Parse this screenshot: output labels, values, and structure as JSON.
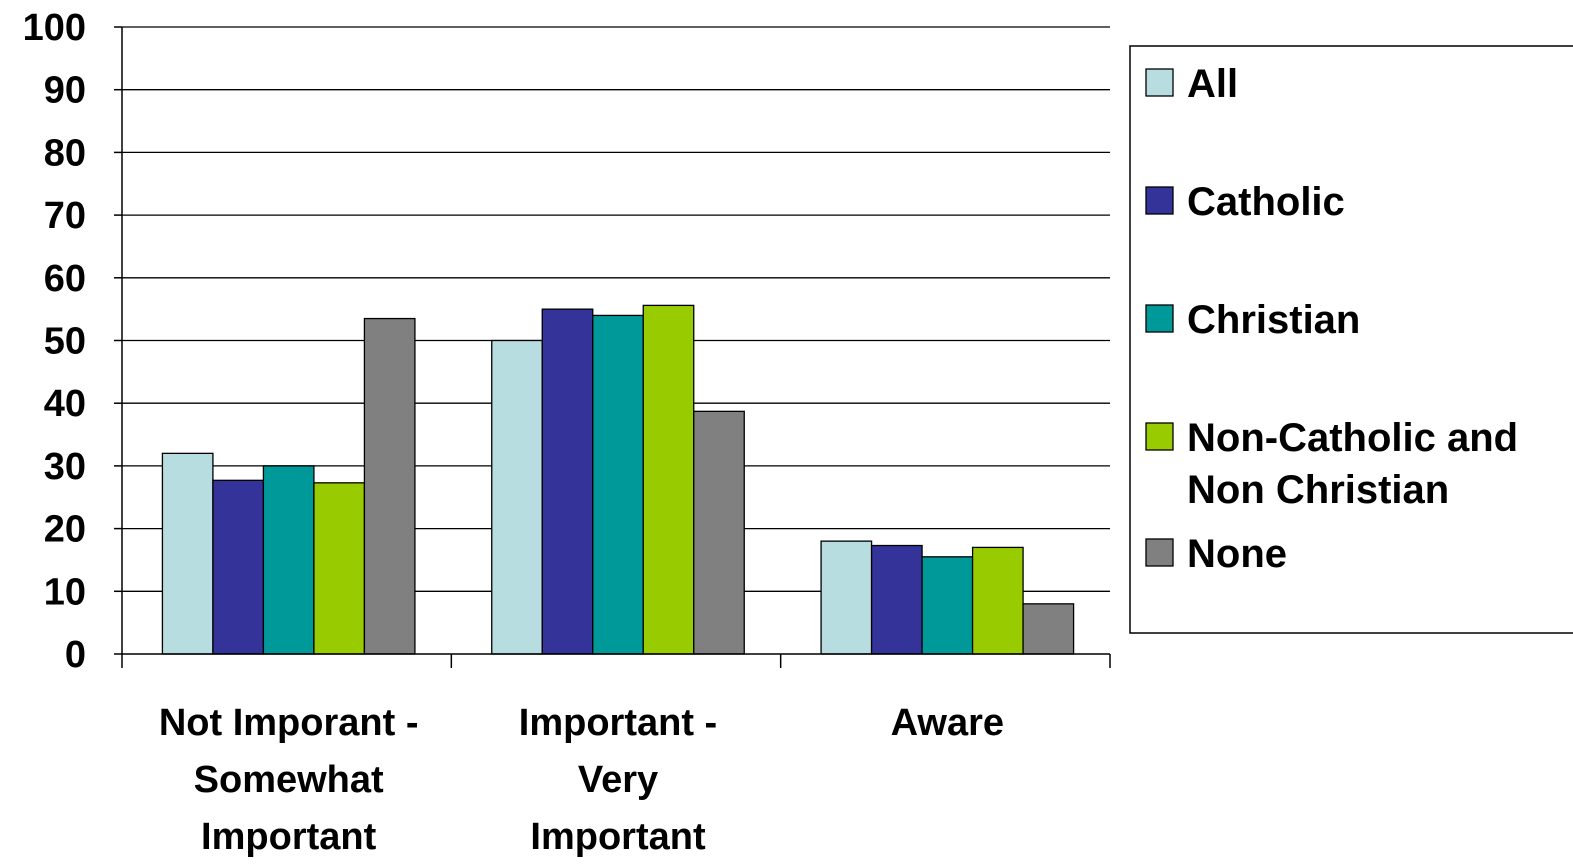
{
  "chart_data": {
    "type": "bar",
    "categories": [
      [
        "Not Imporant -",
        "Somewhat",
        "Important"
      ],
      [
        "Important -",
        "Very",
        "Important"
      ],
      [
        "Aware"
      ]
    ],
    "series": [
      {
        "name": [
          "All"
        ],
        "color": "#b8dde1",
        "values": [
          32,
          50,
          18
        ]
      },
      {
        "name": [
          "Catholic"
        ],
        "color": "#333399",
        "values": [
          27.7,
          55,
          17.3
        ]
      },
      {
        "name": [
          "Christian"
        ],
        "color": "#009999",
        "values": [
          30,
          54,
          15.5
        ]
      },
      {
        "name": [
          "Non-Catholic and",
          "Non Christian"
        ],
        "color": "#99cc00",
        "values": [
          27.3,
          55.6,
          17
        ]
      },
      {
        "name": [
          "None"
        ],
        "color": "#808080",
        "values": [
          53.5,
          38.7,
          8
        ]
      }
    ],
    "ylim": [
      0,
      100
    ],
    "yticks": [
      "0",
      "10",
      "20",
      "30",
      "40",
      "50",
      "60",
      "70",
      "80",
      "90",
      "100"
    ],
    "grid": true,
    "legend": "right",
    "title": "",
    "xlabel": "",
    "ylabel": ""
  }
}
